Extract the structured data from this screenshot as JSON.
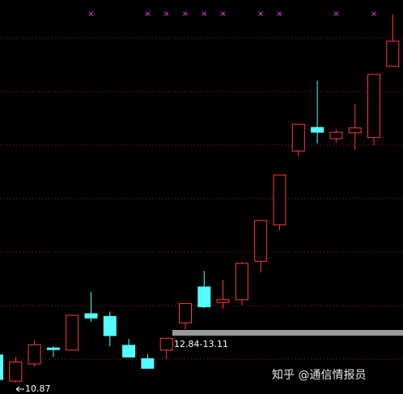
{
  "chart_data": {
    "type": "candlestick",
    "open": [
      11.39,
      10.9,
      11.22,
      11.52,
      11.48,
      12.16,
      12.11,
      11.57,
      11.32,
      11.48,
      11.99,
      12.66,
      12.37,
      12.42,
      13.14,
      13.82,
      15.2,
      15.64,
      15.43,
      15.54,
      15.45,
      16.78
    ],
    "high": [
      11.39,
      11.35,
      11.66,
      11.55,
      12.13,
      12.57,
      12.2,
      11.69,
      11.4,
      11.7,
      12.35,
      12.96,
      12.79,
      13.13,
      13.9,
      14.75,
      15.7,
      16.51,
      15.6,
      16.08,
      16.63,
      17.75
    ],
    "low": [
      10.93,
      10.87,
      11.17,
      11.35,
      11.48,
      12.01,
      11.55,
      11.34,
      11.13,
      11.31,
      11.87,
      12.26,
      12.25,
      12.32,
      12.93,
      13.72,
      15.11,
      15.34,
      15.35,
      15.22,
      15.31,
      16.78
    ],
    "close": [
      10.93,
      11.26,
      11.58,
      11.49,
      12.13,
      12.08,
      11.75,
      11.35,
      11.14,
      11.7,
      12.35,
      12.29,
      12.42,
      13.1,
      13.9,
      14.75,
      15.7,
      15.55,
      15.55,
      15.63,
      16.63,
      17.25
    ],
    "markers": [
      false,
      false,
      false,
      false,
      false,
      true,
      false,
      false,
      true,
      true,
      true,
      true,
      true,
      false,
      true,
      true,
      false,
      false,
      true,
      false,
      true,
      false
    ],
    "marker_symbol": "×",
    "up_color": "#ff3c3c",
    "down_color": "#54ffff",
    "marker_color": "#ff3cff",
    "ylim": [
      10.66,
      18.02
    ],
    "yticks": [
      11.31,
      12.31,
      13.31,
      14.31,
      15.31,
      16.31,
      17.31
    ],
    "grid": true,
    "low_label": "10.87",
    "annotation": "12.84-13.11",
    "watermark": "知乎 @通信情报员"
  }
}
